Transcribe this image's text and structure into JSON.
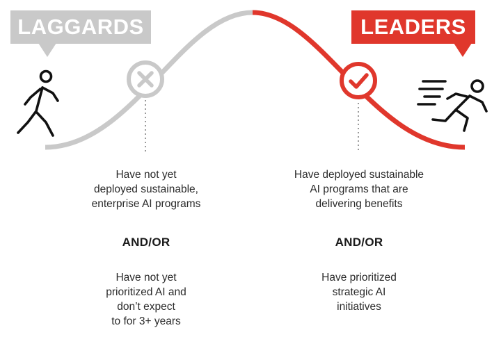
{
  "laggards": {
    "label": "LAGGARDS",
    "color": "#c9c9c9",
    "status_icon": "x-circle-icon",
    "figure_icon": "walking-person-icon",
    "description_lines": [
      "Have not yet",
      "deployed sustainable,",
      "enterprise AI programs"
    ],
    "connector": "AND/OR",
    "secondary_lines": [
      "Have not yet",
      "prioritized AI and",
      "don’t expect",
      "to for 3+ years"
    ]
  },
  "leaders": {
    "label": "LEADERS",
    "color": "#e0372c",
    "status_icon": "check-circle-icon",
    "figure_icon": "running-person-icon",
    "description_lines": [
      "Have deployed sustainable",
      "AI programs that are",
      "delivering benefits"
    ],
    "connector": "AND/OR",
    "secondary_lines": [
      "Have prioritized",
      "strategic AI",
      "initiatives"
    ]
  }
}
